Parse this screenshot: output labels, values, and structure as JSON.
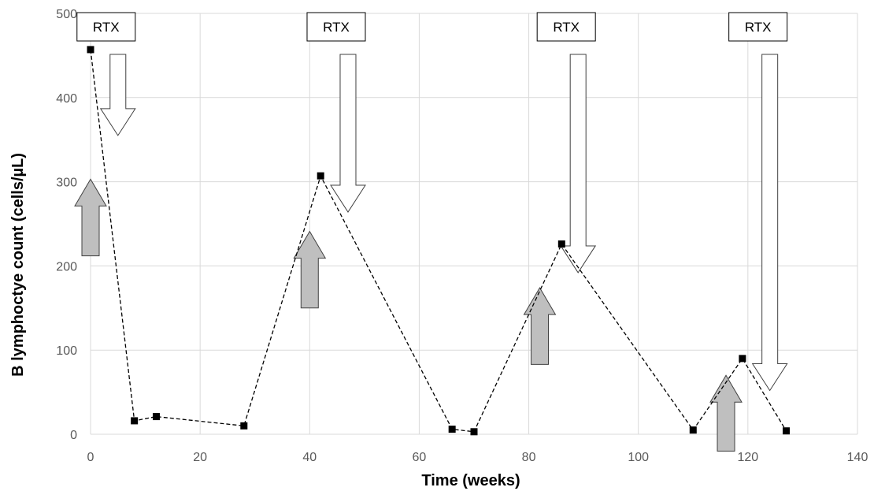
{
  "chart_data": {
    "type": "scatter",
    "title": "",
    "xlabel": "Time (weeks)",
    "ylabel": "B lymphoctye count  (cells/µL)",
    "xlim": [
      0,
      140
    ],
    "ylim": [
      0,
      500
    ],
    "xticks": [
      "0",
      "20",
      "40",
      "60",
      "80",
      "100",
      "120",
      "140"
    ],
    "yticks": [
      "0",
      "100",
      "200",
      "300",
      "400",
      "500"
    ],
    "grid": true,
    "legend": "none",
    "series": [
      {
        "line_style": "dashed",
        "marker": "square",
        "color": "#000000",
        "points": [
          {
            "x": 0,
            "y": 457
          },
          {
            "x": 8,
            "y": 16
          },
          {
            "x": 12,
            "y": 21
          },
          {
            "x": 28,
            "y": 10
          },
          {
            "x": 42,
            "y": 307
          },
          {
            "x": 66,
            "y": 6
          },
          {
            "x": 70,
            "y": 3
          },
          {
            "x": 86,
            "y": 226
          },
          {
            "x": 110,
            "y": 5
          },
          {
            "x": 119,
            "y": 90
          },
          {
            "x": 127,
            "y": 4
          }
        ]
      }
    ],
    "rtx_annotations": [
      {
        "label": "RTX",
        "x": 5,
        "y": 355
      },
      {
        "label": "RTX",
        "x": 47,
        "y": 264
      },
      {
        "label": "RTX",
        "x": 89,
        "y": 192
      },
      {
        "label": "RTX",
        "x": 124,
        "y": 52
      }
    ],
    "rise_arrows": [
      {
        "x": 0,
        "y_from": 212,
        "y_to": 303
      },
      {
        "x": 40,
        "y_from": 150,
        "y_to": 241
      },
      {
        "x": 82,
        "y_from": 83,
        "y_to": 174
      },
      {
        "x": 116,
        "y_from": -20,
        "y_to": 70
      }
    ],
    "colors": {
      "grid": "#d9d9d9",
      "rise_arrow_fill": "#bfbfbf",
      "rtx_arrow_fill": "#ffffff",
      "arrow_stroke": "#404040"
    }
  }
}
